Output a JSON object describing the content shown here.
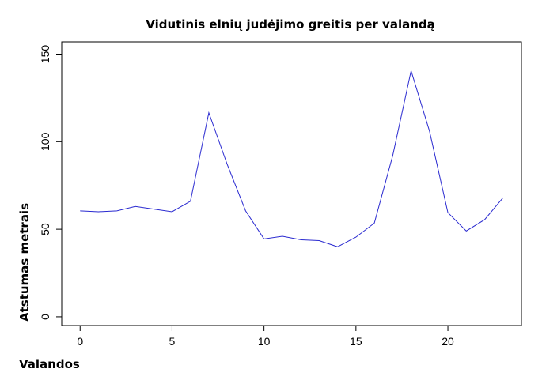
{
  "chart_data": {
    "type": "line",
    "title": "Vidutinis elnių judėjimo greitis per valandą",
    "xlabel": "Valandos",
    "ylabel": "Atstumas metrais",
    "xlim": [
      -1,
      24
    ],
    "ylim": [
      -5,
      157
    ],
    "x_ticks": [
      0,
      5,
      10,
      15,
      20
    ],
    "y_ticks": [
      0,
      50,
      100,
      150
    ],
    "grid": false,
    "color": "#2a2ad0",
    "x": [
      0,
      1,
      2,
      3,
      4,
      5,
      6,
      7,
      8,
      9,
      10,
      11,
      12,
      13,
      14,
      15,
      16,
      17,
      18,
      19,
      20,
      21,
      22,
      23
    ],
    "values": [
      60.5,
      60,
      60.5,
      63,
      61.5,
      60,
      66,
      116.5,
      87,
      60.5,
      44.5,
      46,
      44,
      43.5,
      40,
      45.5,
      53.5,
      92,
      140.5,
      106,
      59.5,
      49,
      55.5,
      68
    ]
  }
}
